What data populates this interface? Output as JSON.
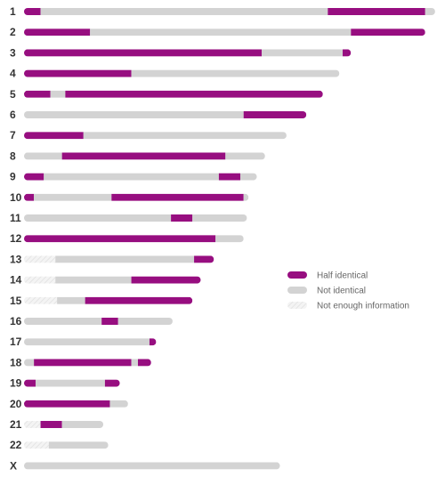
{
  "chart_data": {
    "type": "bar",
    "orientation": "horizontal",
    "legend_position": "right",
    "colors": {
      "half_identical": "#970e80",
      "not_identical": "#d3d3d3",
      "not_enough_information": "#ececec"
    },
    "legend": [
      {
        "key": "half_identical",
        "label": "Half identical"
      },
      {
        "key": "not_identical",
        "label": "Not identical"
      },
      {
        "key": "not_enough_information",
        "label": "Not enough information"
      }
    ],
    "chromosomes": [
      {
        "label": "1",
        "length": 249,
        "segments": [
          {
            "type": "half_identical",
            "start": 0,
            "end": 10
          },
          {
            "type": "not_identical",
            "start": 10,
            "end": 184
          },
          {
            "type": "half_identical",
            "start": 184,
            "end": 243
          },
          {
            "type": "not_identical",
            "start": 243,
            "end": 249
          }
        ]
      },
      {
        "label": "2",
        "length": 243,
        "segments": [
          {
            "type": "half_identical",
            "start": 0,
            "end": 40
          },
          {
            "type": "not_identical",
            "start": 40,
            "end": 198
          },
          {
            "type": "half_identical",
            "start": 198,
            "end": 243
          }
        ]
      },
      {
        "label": "3",
        "length": 198,
        "segments": [
          {
            "type": "half_identical",
            "start": 0,
            "end": 144
          },
          {
            "type": "not_identical",
            "start": 144,
            "end": 193
          },
          {
            "type": "half_identical",
            "start": 193,
            "end": 198
          }
        ]
      },
      {
        "label": "4",
        "length": 191,
        "segments": [
          {
            "type": "half_identical",
            "start": 0,
            "end": 65
          },
          {
            "type": "not_identical",
            "start": 65,
            "end": 191
          }
        ]
      },
      {
        "label": "5",
        "length": 181,
        "segments": [
          {
            "type": "half_identical",
            "start": 0,
            "end": 16
          },
          {
            "type": "not_identical",
            "start": 16,
            "end": 25
          },
          {
            "type": "half_identical",
            "start": 25,
            "end": 181
          }
        ]
      },
      {
        "label": "6",
        "length": 171,
        "segments": [
          {
            "type": "not_identical",
            "start": 0,
            "end": 133
          },
          {
            "type": "half_identical",
            "start": 133,
            "end": 171
          }
        ]
      },
      {
        "label": "7",
        "length": 159,
        "segments": [
          {
            "type": "half_identical",
            "start": 0,
            "end": 36
          },
          {
            "type": "not_identical",
            "start": 36,
            "end": 159
          }
        ]
      },
      {
        "label": "8",
        "length": 146,
        "segments": [
          {
            "type": "not_identical",
            "start": 0,
            "end": 23
          },
          {
            "type": "half_identical",
            "start": 23,
            "end": 122
          },
          {
            "type": "not_identical",
            "start": 122,
            "end": 146
          }
        ]
      },
      {
        "label": "9",
        "length": 141,
        "segments": [
          {
            "type": "half_identical",
            "start": 0,
            "end": 12
          },
          {
            "type": "not_identical",
            "start": 12,
            "end": 118
          },
          {
            "type": "half_identical",
            "start": 118,
            "end": 131
          },
          {
            "type": "not_identical",
            "start": 131,
            "end": 141
          }
        ]
      },
      {
        "label": "10",
        "length": 136,
        "segments": [
          {
            "type": "half_identical",
            "start": 0,
            "end": 6
          },
          {
            "type": "not_identical",
            "start": 6,
            "end": 53
          },
          {
            "type": "half_identical",
            "start": 53,
            "end": 133
          },
          {
            "type": "not_identical",
            "start": 133,
            "end": 136
          }
        ]
      },
      {
        "label": "11",
        "length": 135,
        "segments": [
          {
            "type": "not_identical",
            "start": 0,
            "end": 89
          },
          {
            "type": "half_identical",
            "start": 89,
            "end": 102
          },
          {
            "type": "not_identical",
            "start": 102,
            "end": 135
          }
        ]
      },
      {
        "label": "12",
        "length": 133,
        "segments": [
          {
            "type": "half_identical",
            "start": 0,
            "end": 116
          },
          {
            "type": "not_identical",
            "start": 116,
            "end": 133
          }
        ]
      },
      {
        "label": "13",
        "length": 115,
        "segments": [
          {
            "type": "not_enough_information",
            "start": 0,
            "end": 19
          },
          {
            "type": "not_identical",
            "start": 19,
            "end": 103
          },
          {
            "type": "half_identical",
            "start": 103,
            "end": 115
          }
        ]
      },
      {
        "label": "14",
        "length": 107,
        "segments": [
          {
            "type": "not_enough_information",
            "start": 0,
            "end": 19
          },
          {
            "type": "not_identical",
            "start": 19,
            "end": 65
          },
          {
            "type": "half_identical",
            "start": 65,
            "end": 107
          }
        ]
      },
      {
        "label": "15",
        "length": 102,
        "segments": [
          {
            "type": "not_enough_information",
            "start": 0,
            "end": 20
          },
          {
            "type": "not_identical",
            "start": 20,
            "end": 37
          },
          {
            "type": "half_identical",
            "start": 37,
            "end": 102
          }
        ]
      },
      {
        "label": "16",
        "length": 90,
        "segments": [
          {
            "type": "not_identical",
            "start": 0,
            "end": 47
          },
          {
            "type": "half_identical",
            "start": 47,
            "end": 57
          },
          {
            "type": "not_identical",
            "start": 57,
            "end": 90
          }
        ]
      },
      {
        "label": "17",
        "length": 80,
        "segments": [
          {
            "type": "not_identical",
            "start": 0,
            "end": 76
          },
          {
            "type": "half_identical",
            "start": 76,
            "end": 80
          }
        ]
      },
      {
        "label": "18",
        "length": 77,
        "segments": [
          {
            "type": "not_identical",
            "start": 0,
            "end": 6
          },
          {
            "type": "half_identical",
            "start": 6,
            "end": 65
          },
          {
            "type": "not_identical",
            "start": 65,
            "end": 69
          },
          {
            "type": "half_identical",
            "start": 69,
            "end": 77
          }
        ]
      },
      {
        "label": "19",
        "length": 58,
        "segments": [
          {
            "type": "half_identical",
            "start": 0,
            "end": 7
          },
          {
            "type": "not_identical",
            "start": 7,
            "end": 49
          },
          {
            "type": "half_identical",
            "start": 49,
            "end": 58
          }
        ]
      },
      {
        "label": "20",
        "length": 63,
        "segments": [
          {
            "type": "half_identical",
            "start": 0,
            "end": 52
          },
          {
            "type": "not_identical",
            "start": 52,
            "end": 63
          }
        ]
      },
      {
        "label": "21",
        "length": 48,
        "segments": [
          {
            "type": "not_enough_information",
            "start": 0,
            "end": 10
          },
          {
            "type": "half_identical",
            "start": 10,
            "end": 23
          },
          {
            "type": "not_identical",
            "start": 23,
            "end": 48
          }
        ]
      },
      {
        "label": "22",
        "length": 51,
        "segments": [
          {
            "type": "not_enough_information",
            "start": 0,
            "end": 15
          },
          {
            "type": "not_identical",
            "start": 15,
            "end": 51
          }
        ]
      },
      {
        "label": "X",
        "length": 155,
        "segments": [
          {
            "type": "not_identical",
            "start": 0,
            "end": 155
          }
        ]
      }
    ]
  }
}
